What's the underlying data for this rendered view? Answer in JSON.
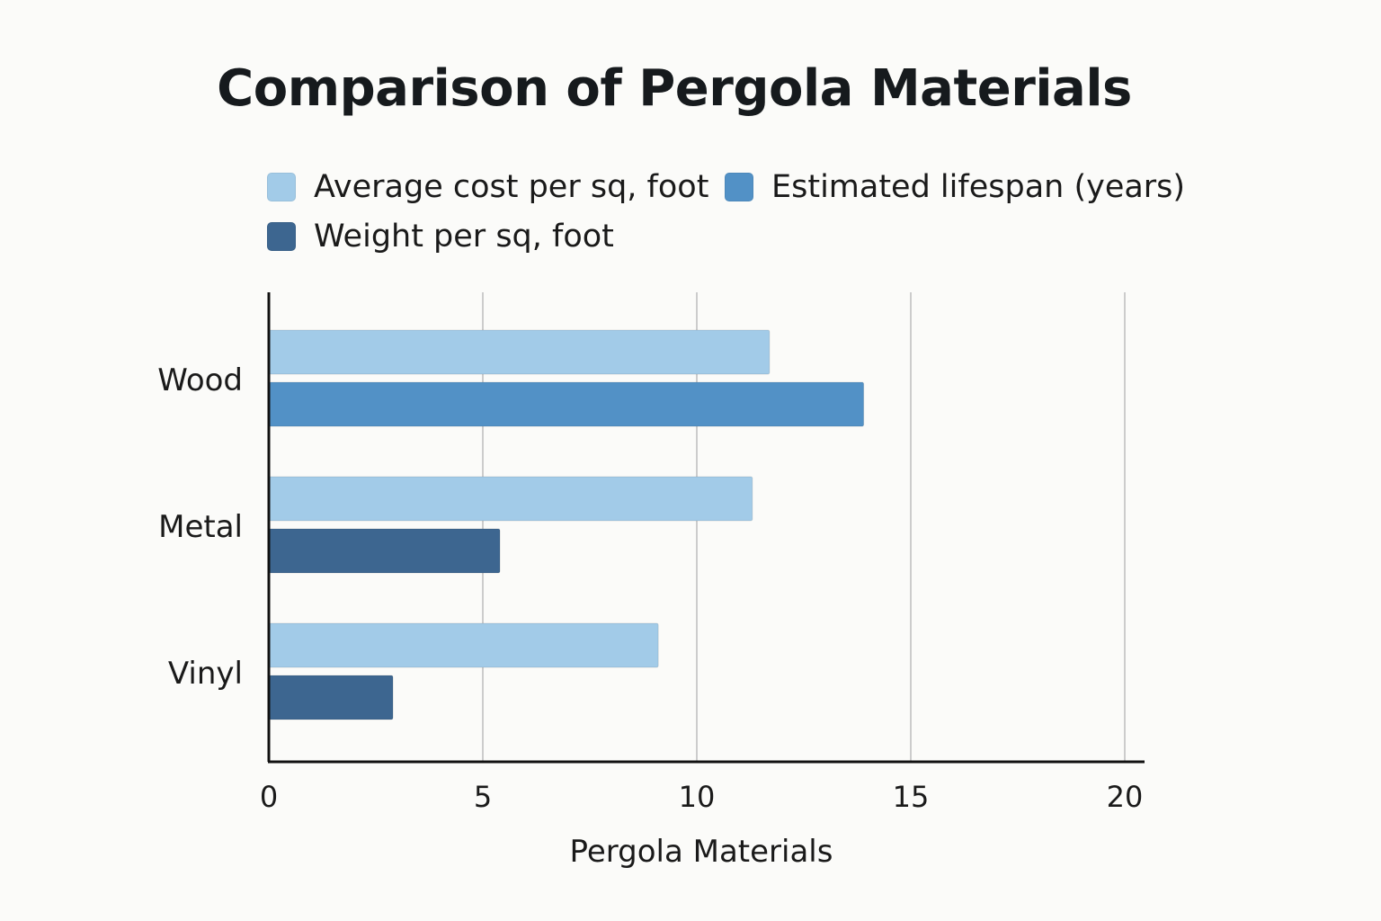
{
  "colors": {
    "series_cost": "#a2cbe8",
    "series_lifespan": "#5291c6",
    "series_weight": "#3d6690",
    "gridline": "#cccccc",
    "axis": "#111111",
    "background": "#fbfbf9"
  },
  "chart_data": {
    "type": "bar",
    "orientation": "horizontal",
    "title": "Comparison of Pergola Materials",
    "xlabel": "Pergola Materials",
    "ylabel": "",
    "categories": [
      "Wood",
      "Metal",
      "Vinyl"
    ],
    "series": [
      {
        "name": "Average cost per sq, foot",
        "values": [
          11.7,
          11.3,
          9.1
        ]
      },
      {
        "name": "Estimated lifespan (years)",
        "values": [
          13.9,
          null,
          null
        ]
      },
      {
        "name": "Weight per sq, foot",
        "values": [
          null,
          5.4,
          2.9
        ]
      }
    ],
    "xlim": [
      0,
      20
    ],
    "xticks": [
      "0",
      "5",
      "10",
      "15",
      "20"
    ],
    "grid": "vertical",
    "legend_position": "top"
  }
}
